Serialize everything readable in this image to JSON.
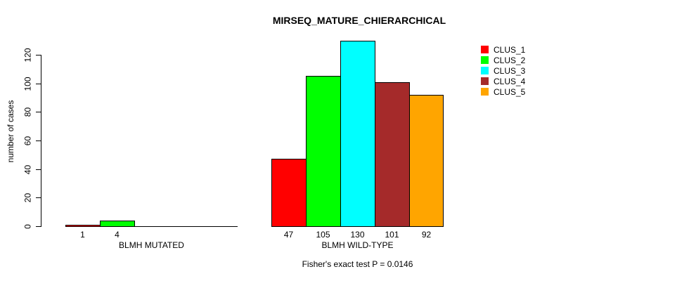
{
  "page": {
    "background": "#ffffff",
    "text_color": "#000000"
  },
  "chart_data": {
    "type": "bar",
    "title": "MIRSEQ_MATURE_CHIERARCHICAL",
    "ylabel": "number of cases",
    "xlabel": "",
    "ylim": [
      0,
      130
    ],
    "yticks": [
      0,
      20,
      40,
      60,
      80,
      100,
      120
    ],
    "grid": false,
    "legend_position": "top-right",
    "axis_color": "#000000",
    "bar_border_color": "#000000",
    "groups": [
      {
        "label": "BLMH MUTATED",
        "values": [
          1,
          4,
          0,
          0,
          0
        ],
        "bar_labels": [
          "1",
          "4",
          "",
          "",
          ""
        ]
      },
      {
        "label": "BLMH WILD-TYPE",
        "values": [
          47,
          105,
          130,
          101,
          92
        ],
        "bar_labels": [
          "47",
          "105",
          "130",
          "101",
          "92"
        ]
      }
    ],
    "series": [
      {
        "name": "CLUS_1",
        "color": "#ff0000",
        "values": [
          1,
          47
        ]
      },
      {
        "name": "CLUS_2",
        "color": "#00ff00",
        "values": [
          4,
          105
        ]
      },
      {
        "name": "CLUS_3",
        "color": "#00ffff",
        "values": [
          0,
          130
        ]
      },
      {
        "name": "CLUS_4",
        "color": "#a52a2a",
        "values": [
          0,
          101
        ]
      },
      {
        "name": "CLUS_5",
        "color": "#ffa500",
        "values": [
          0,
          92
        ]
      }
    ],
    "legend": [
      {
        "label": "CLUS_1",
        "color": "#ff0000"
      },
      {
        "label": "CLUS_2",
        "color": "#00ff00"
      },
      {
        "label": "CLUS_3",
        "color": "#00ffff"
      },
      {
        "label": "CLUS_4",
        "color": "#a52a2a"
      },
      {
        "label": "CLUS_5",
        "color": "#ffa500"
      }
    ],
    "annotation": "Fisher's exact test P = 0.0146"
  }
}
